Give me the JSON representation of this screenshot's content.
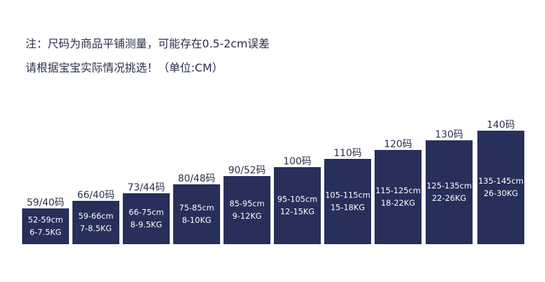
{
  "notes": [
    "注：尺码为商品平铺测量，可能存在0.5-2cm误差",
    "请根据宝宝实际情况挑选！（单位:CM）"
  ],
  "sizes": [
    {
      "label": "59/40码",
      "height": "52-59cm",
      "weight": "6-7.5KG"
    },
    {
      "label": "66/40码",
      "height": "59-66cm",
      "weight": "7-8.5KG"
    },
    {
      "label": "73/44码",
      "height": "66-75cm",
      "weight": "8-9.5KG"
    },
    {
      "label": "80/48码",
      "height": "75-85cm",
      "weight": "8-10KG"
    },
    {
      "label": "90/52码",
      "height": "85-95cm",
      "weight": "9-12KG"
    },
    {
      "label": "100码",
      "height": "95-105cm",
      "weight": "12-15KG"
    },
    {
      "label": "110码",
      "height": "105-115cm",
      "weight": "15-18KG"
    },
    {
      "label": "120码",
      "height": "115-125cm",
      "weight": "18-22KG"
    },
    {
      "label": "130码",
      "height": "125-135cm",
      "weight": "22-26KG"
    },
    {
      "label": "140码",
      "height": "135-145cm",
      "weight": "26-30KG"
    }
  ]
}
